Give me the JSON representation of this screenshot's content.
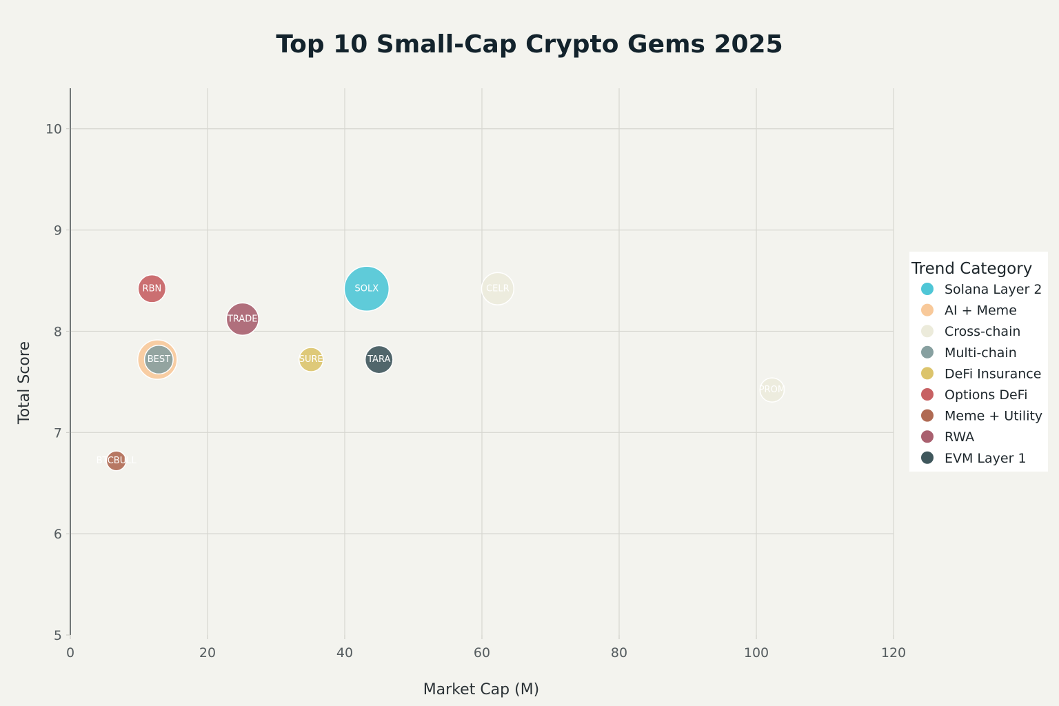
{
  "chart_data": {
    "type": "scatter",
    "title": "Top 10 Small-Cap Crypto Gems 2025",
    "xlabel": "Market Cap (M)",
    "ylabel": "Total Score",
    "xlim": [
      0,
      120
    ],
    "ylim": [
      5,
      10.4
    ],
    "x_ticks": [
      0,
      20,
      40,
      60,
      80,
      100,
      120
    ],
    "y_ticks": [
      5,
      6,
      7,
      8,
      9,
      10
    ],
    "grid": true,
    "legend": {
      "title": "Trend Category",
      "placement": "right",
      "entries": [
        {
          "name": "Solana Layer 2",
          "color": "#4fc6d6"
        },
        {
          "name": "AI + Meme",
          "color": "#f8c99a"
        },
        {
          "name": "Cross-chain",
          "color": "#ecebdb"
        },
        {
          "name": "Multi-chain",
          "color": "#87a0a0"
        },
        {
          "name": "DeFi Insurance",
          "color": "#dcc46c"
        },
        {
          "name": "Options DeFi",
          "color": "#c76163"
        },
        {
          "name": "Meme + Utility",
          "color": "#b06a53"
        },
        {
          "name": "RWA",
          "color": "#a9606f"
        },
        {
          "name": "EVM Layer 1",
          "color": "#3f575c"
        }
      ]
    },
    "points": [
      {
        "label": "SOLX",
        "category": "Solana Layer 2",
        "x": 43.2,
        "y": 8.42,
        "size": 5.0
      },
      {
        "label": "BEST",
        "category": "AI + Meme",
        "x": 12.7,
        "y": 7.72,
        "size": 4.4
      },
      {
        "label": "CELR",
        "category": "Cross-chain",
        "x": 62.3,
        "y": 8.42,
        "size": 3.6
      },
      {
        "label": "PROM",
        "category": "Cross-chain",
        "x": 102.3,
        "y": 7.42,
        "size": 2.7
      },
      {
        "label": "BEST",
        "category": "Multi-chain",
        "x": 12.9,
        "y": 7.72,
        "size": 3.2
      },
      {
        "label": "SURE",
        "category": "DeFi Insurance",
        "x": 35.1,
        "y": 7.72,
        "size": 2.7
      },
      {
        "label": "RBN",
        "category": "Options DeFi",
        "x": 11.9,
        "y": 8.42,
        "size": 3.1
      },
      {
        "label": "BTCBULL",
        "category": "Meme + Utility",
        "x": 6.7,
        "y": 6.72,
        "size": 2.2
      },
      {
        "label": "TRADE",
        "category": "RWA",
        "x": 25.1,
        "y": 8.12,
        "size": 3.6
      },
      {
        "label": "TARA",
        "category": "EVM Layer 1",
        "x": 45.0,
        "y": 7.72,
        "size": 3.1
      }
    ]
  }
}
